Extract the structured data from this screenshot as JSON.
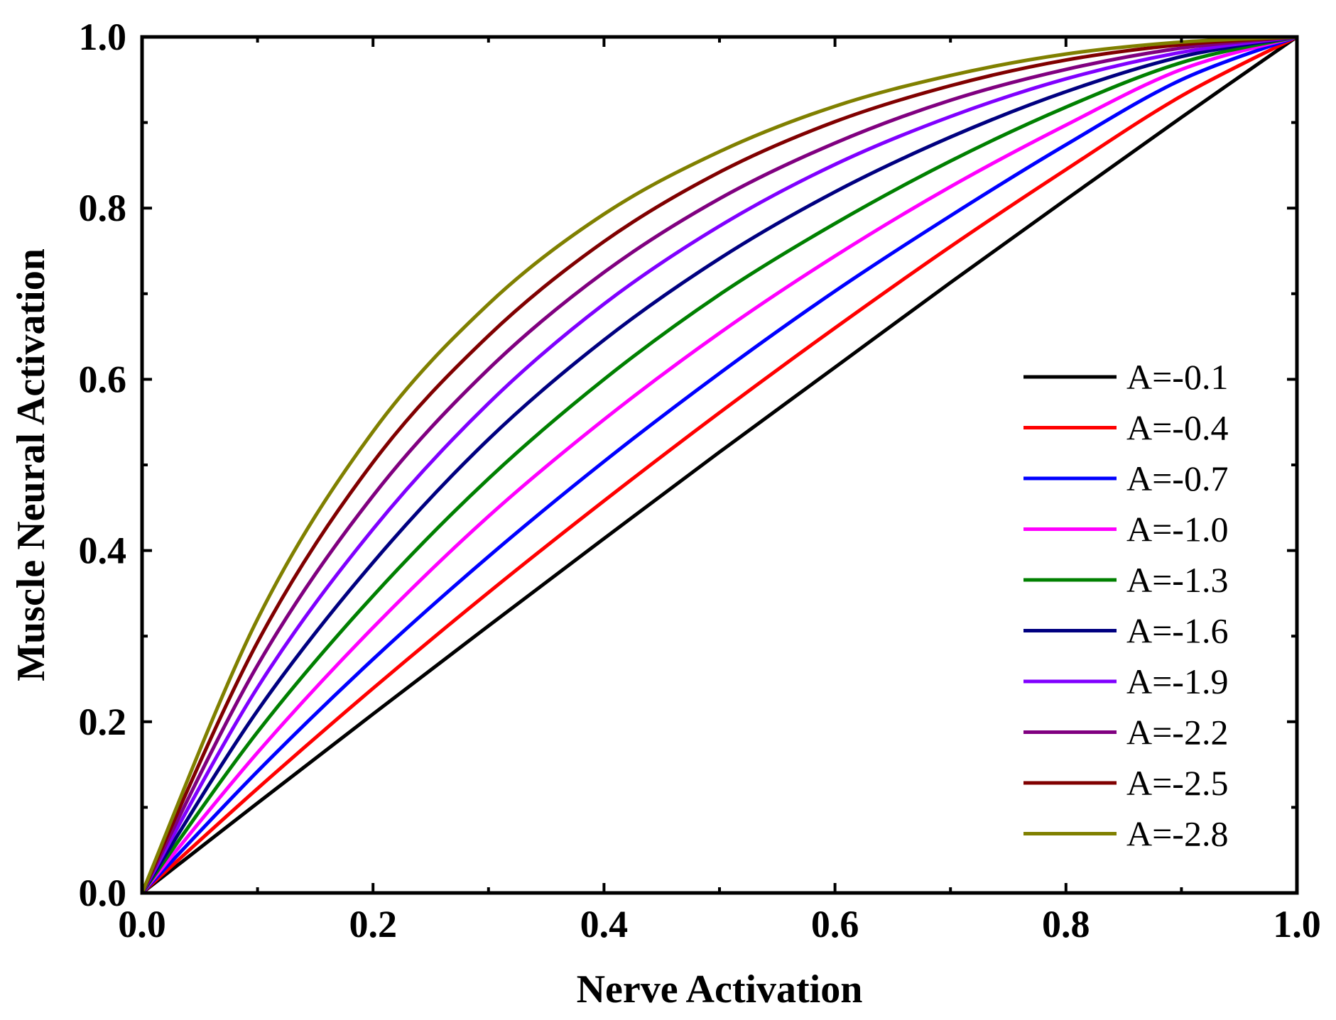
{
  "chart_data": {
    "type": "line",
    "title": "",
    "xlabel": "Nerve Activation",
    "ylabel": "Muscle Neural Activation",
    "xlim": [
      0.0,
      1.0
    ],
    "ylim": [
      0.0,
      1.0
    ],
    "x_ticks": [
      "0.0",
      "0.2",
      "0.4",
      "0.6",
      "0.8",
      "1.0"
    ],
    "y_ticks": [
      "0.0",
      "0.2",
      "0.4",
      "0.6",
      "0.8",
      "1.0"
    ],
    "grid": false,
    "legend_position": "right",
    "x": [
      0.0,
      0.1,
      0.2,
      0.3,
      0.4,
      0.5,
      0.6,
      0.7,
      0.8,
      0.9,
      1.0
    ],
    "series": [
      {
        "name": "A=-0.1",
        "color": "#000000",
        "values": [
          0.0,
          0.105,
          0.209,
          0.312,
          0.414,
          0.515,
          0.614,
          0.713,
          0.81,
          0.906,
          1.0
        ]
      },
      {
        "name": "A=-0.4",
        "color": "#ff0000",
        "values": [
          0.0,
          0.122,
          0.239,
          0.351,
          0.458,
          0.561,
          0.66,
          0.755,
          0.845,
          0.931,
          1.0
        ]
      },
      {
        "name": "A=-0.7",
        "color": "#0000ff",
        "values": [
          0.0,
          0.142,
          0.273,
          0.393,
          0.504,
          0.607,
          0.703,
          0.791,
          0.874,
          0.95,
          1.0
        ]
      },
      {
        "name": "A=-1.0",
        "color": "#ff00ff",
        "values": [
          0.0,
          0.164,
          0.31,
          0.44,
          0.553,
          0.654,
          0.744,
          0.825,
          0.897,
          0.962,
          1.0
        ]
      },
      {
        "name": "A=-1.3",
        "color": "#008000",
        "values": [
          0.0,
          0.188,
          0.347,
          0.484,
          0.6,
          0.699,
          0.782,
          0.855,
          0.918,
          0.97,
          1.0
        ]
      },
      {
        "name": "A=-1.6",
        "color": "#000080",
        "values": [
          0.0,
          0.213,
          0.386,
          0.53,
          0.646,
          0.741,
          0.819,
          0.883,
          0.936,
          0.977,
          1.0
        ]
      },
      {
        "name": "A=-1.9",
        "color": "#8000ff",
        "values": [
          0.0,
          0.24,
          0.425,
          0.572,
          0.688,
          0.779,
          0.851,
          0.907,
          0.951,
          0.982,
          1.0
        ]
      },
      {
        "name": "A=-2.2",
        "color": "#800080",
        "values": [
          0.0,
          0.266,
          0.464,
          0.612,
          0.725,
          0.811,
          0.876,
          0.926,
          0.962,
          0.987,
          1.0
        ]
      },
      {
        "name": "A=-2.5",
        "color": "#800000",
        "values": [
          0.0,
          0.293,
          0.503,
          0.651,
          0.761,
          0.842,
          0.901,
          0.943,
          0.973,
          0.991,
          1.0
        ]
      },
      {
        "name": "A=-2.8",
        "color": "#808000",
        "values": [
          0.0,
          0.32,
          0.539,
          0.688,
          0.793,
          0.866,
          0.919,
          0.955,
          0.98,
          0.994,
          1.0
        ]
      }
    ]
  }
}
